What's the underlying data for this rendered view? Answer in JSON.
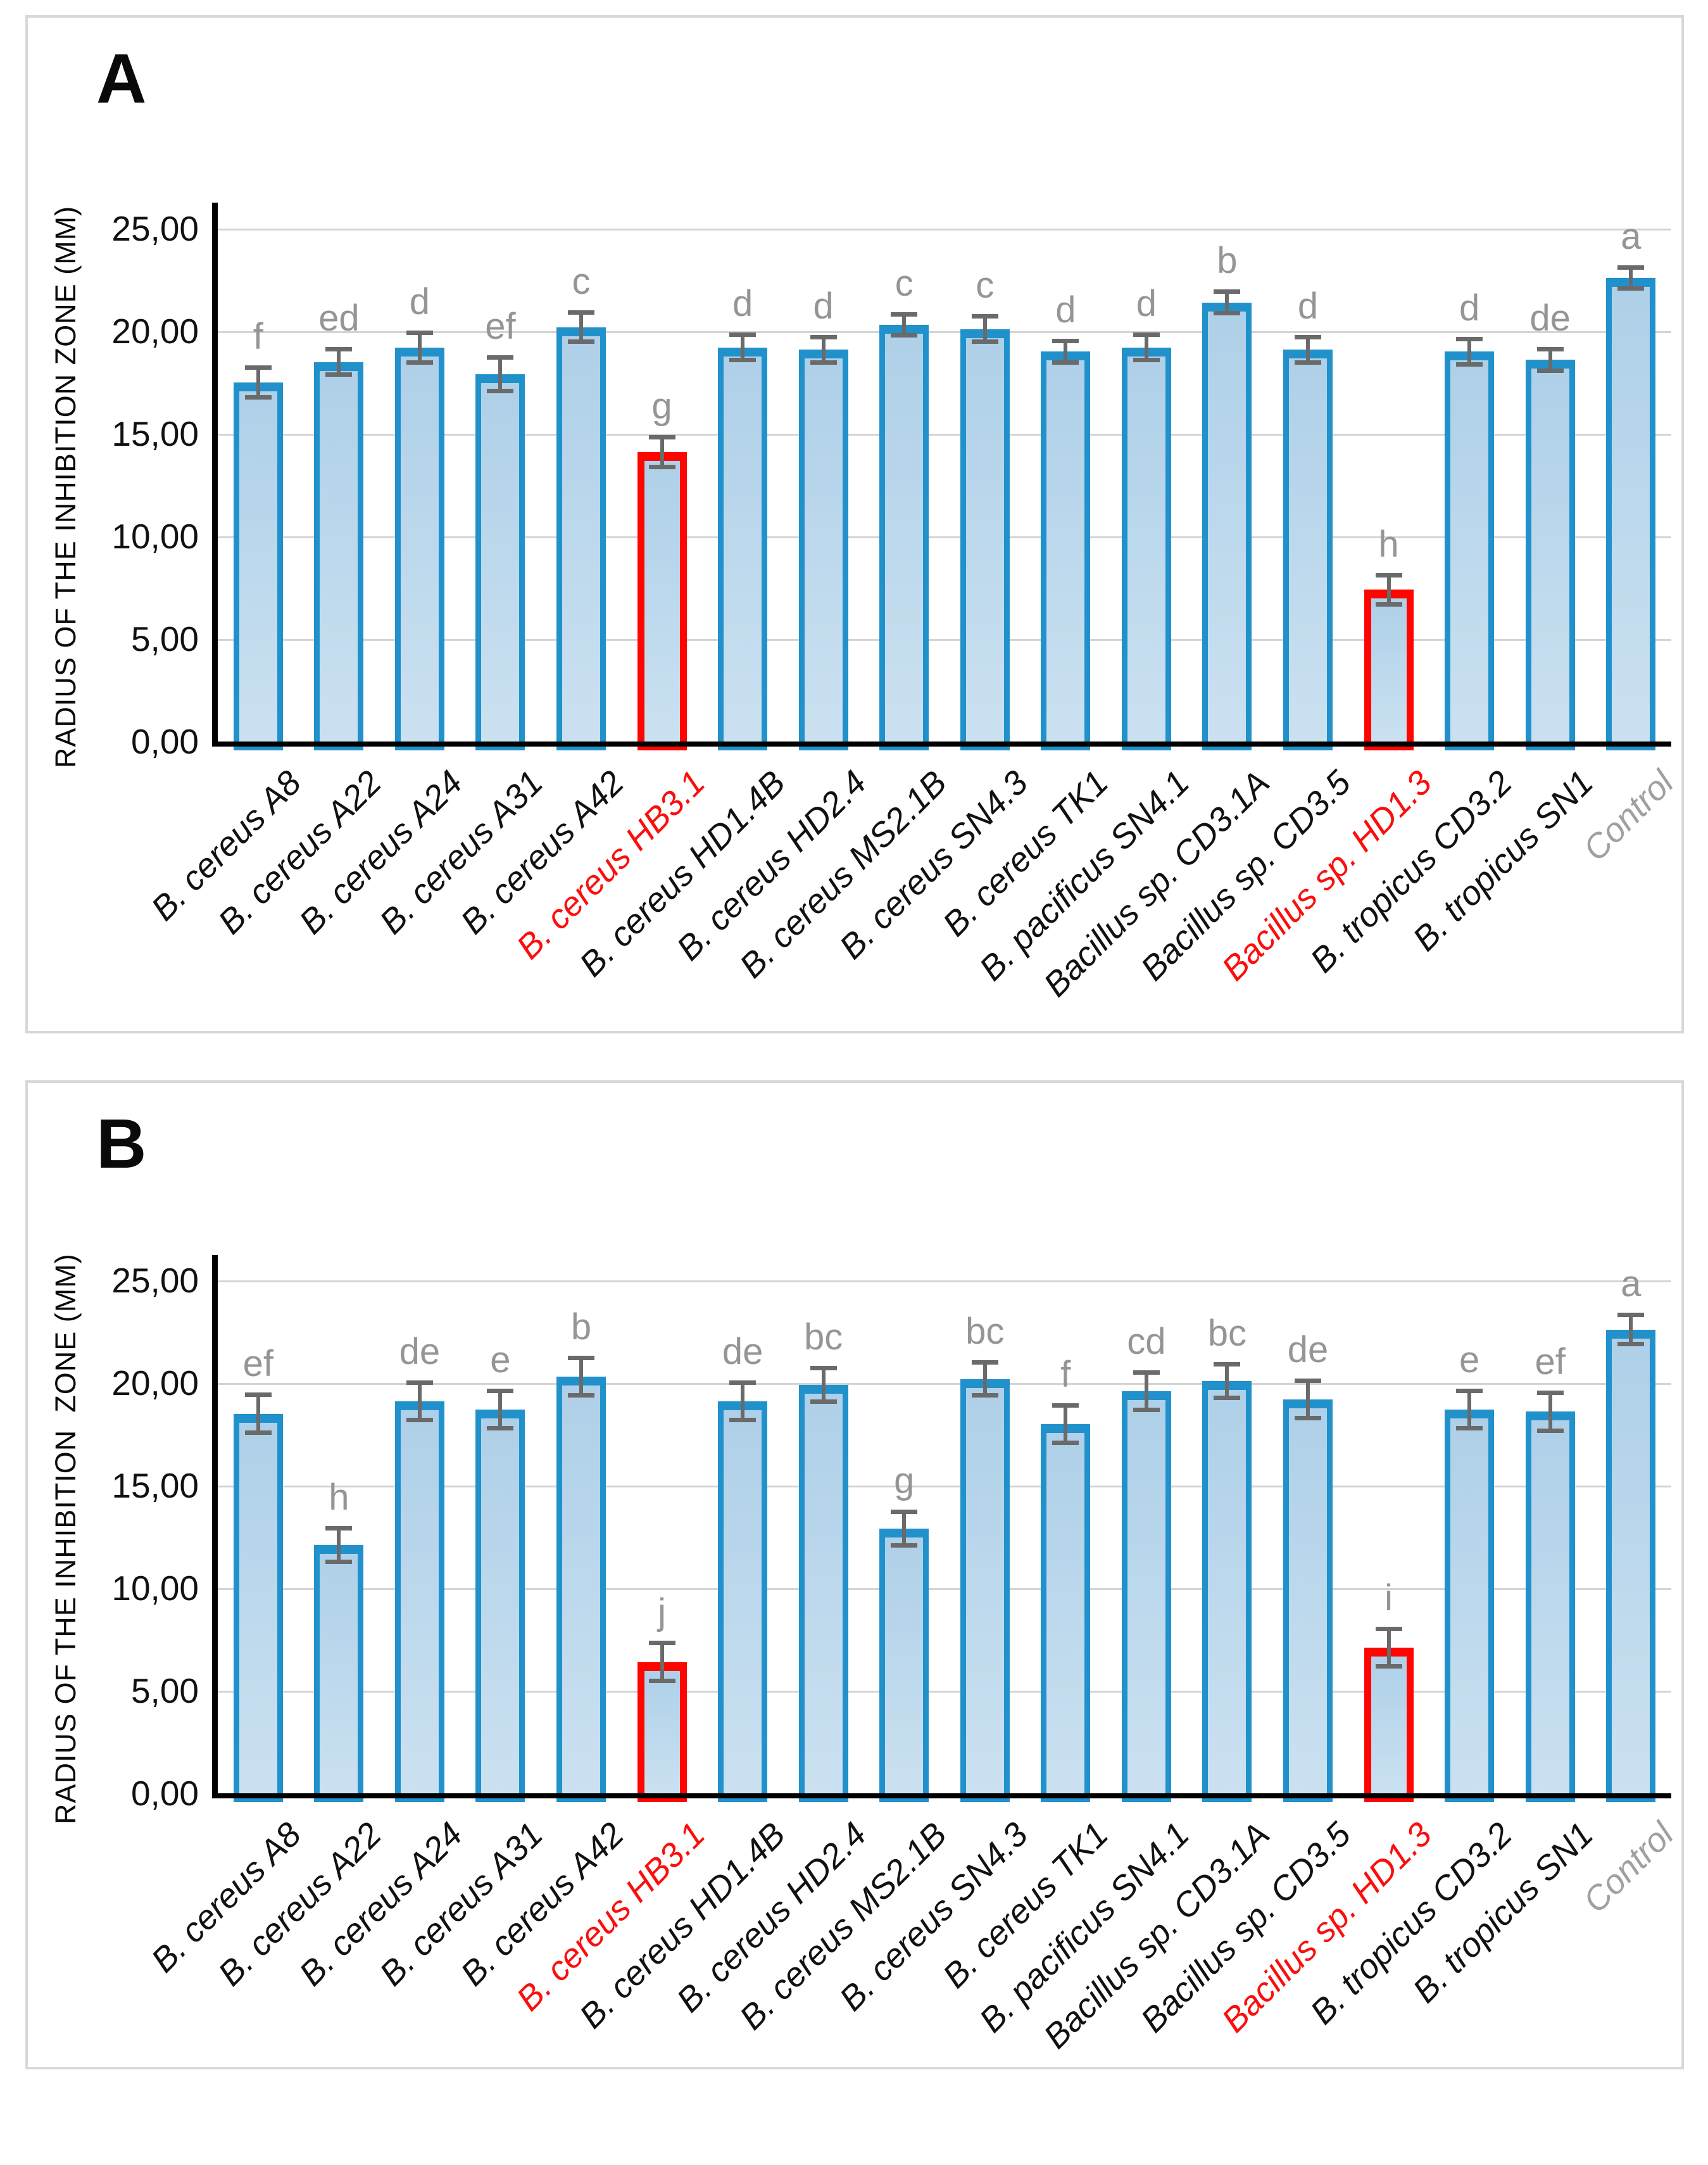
{
  "figure": {
    "panel_count": 2,
    "description_visible_text_only": true
  },
  "style": {
    "bar_fill_top": "#aed0e8",
    "bar_fill_bottom": "#cbe1f1",
    "bar_border": "#2191cc",
    "highlight_border": "#fe0500",
    "error_bar_color": "#6a6a6a",
    "sig_letter_color": "#959595",
    "gridline_color": "#d4d4d4",
    "axis_color": "#000000",
    "category_color": "#111111",
    "category_highlight_color": "#fb0e0c",
    "category_control_color": "#a0a0a0",
    "panel_border_color": "#d8d8d8"
  },
  "chart_data": [
    {
      "type": "bar",
      "panel": "A",
      "title": "",
      "xlabel": "",
      "ylabel": "RADIUS OF THE INHIBITION ZONE (MM)",
      "ylim": [
        0,
        25
      ],
      "ytick_step": 5,
      "ytick_labels": [
        "0,00",
        "5,00",
        "10,00",
        "15,00",
        "20,00",
        "25,00"
      ],
      "grid": true,
      "legend": "none",
      "categories": [
        "B. cereus A8",
        "B. cereus A22",
        "B. cereus A24",
        "B. cereus A31",
        "B. cereus A42",
        "B. cereus HB3.1",
        "B. cereus HD1.4B",
        "B. cereus HD2.4",
        "B. cereus MS2.1B",
        "B. cereus SN4.3",
        "B. cereus TK1",
        "B. pacificus SN4.1",
        "Bacillus sp. CD3.1A",
        "Bacillus sp. CD3.5",
        "Bacillus sp. HD1.3",
        "B. tropicus CD3.2",
        "B. tropicus SN1",
        "Control"
      ],
      "values": [
        17.5,
        18.5,
        19.2,
        17.9,
        20.2,
        14.1,
        19.2,
        19.1,
        20.3,
        20.1,
        19.0,
        19.2,
        21.4,
        19.1,
        7.4,
        19.0,
        18.6,
        22.6
      ],
      "errors": [
        0.7,
        0.6,
        0.7,
        0.8,
        0.7,
        0.7,
        0.6,
        0.6,
        0.5,
        0.6,
        0.5,
        0.6,
        0.5,
        0.6,
        0.7,
        0.6,
        0.5,
        0.5
      ],
      "sig_letters": [
        "f",
        "ed",
        "d",
        "ef",
        "c",
        "g",
        "d",
        "d",
        "c",
        "c",
        "d",
        "d",
        "b",
        "d",
        "h",
        "d",
        "de",
        "a"
      ],
      "highlight_indices": [
        5,
        14
      ],
      "control_index": 17
    },
    {
      "type": "bar",
      "panel": "B",
      "title": "",
      "xlabel": "",
      "ylabel": "RADIUS OF THE INHIBITION  ZONE (MM)",
      "ylim": [
        0,
        25
      ],
      "ytick_step": 5,
      "ytick_labels": [
        "0,00",
        "5,00",
        "10,00",
        "15,00",
        "20,00",
        "25,00"
      ],
      "grid": true,
      "legend": "none",
      "categories": [
        "B. cereus A8",
        "B. cereus A22",
        "B. cereus A24",
        "B. cereus A31",
        "B. cereus A42",
        "B. cereus HB3.1",
        "B. cereus HD1.4B",
        "B. cereus HD2.4",
        "B. cereus MS2.1B",
        "B. cereus SN4.3",
        "B. cereus TK1",
        "B. pacificus SN4.1",
        "Bacillus sp. CD3.1A",
        "Bacillus sp. CD3.5",
        "Bacillus sp. HD1.3",
        "B. tropicus CD3.2",
        "B. tropicus SN1",
        "Control"
      ],
      "values": [
        18.5,
        12.1,
        19.1,
        18.7,
        20.3,
        6.4,
        19.1,
        19.9,
        12.9,
        20.2,
        18.0,
        19.6,
        20.1,
        19.2,
        7.1,
        18.7,
        18.6,
        22.6
      ],
      "errors": [
        0.9,
        0.8,
        0.9,
        0.9,
        0.9,
        0.9,
        0.9,
        0.8,
        0.8,
        0.8,
        0.9,
        0.9,
        0.8,
        0.9,
        0.9,
        0.9,
        0.9,
        0.7
      ],
      "sig_letters": [
        "ef",
        "h",
        "de",
        "e",
        "b",
        "j",
        "de",
        "bc",
        "g",
        "bc",
        "f",
        "cd",
        "bc",
        "de",
        "i",
        "e",
        "ef",
        "a"
      ],
      "highlight_indices": [
        5,
        14
      ],
      "control_index": 17
    }
  ]
}
